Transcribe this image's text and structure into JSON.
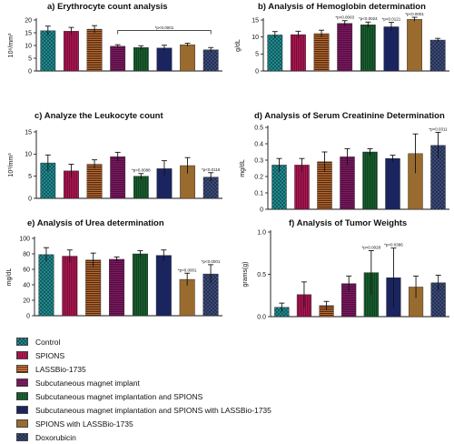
{
  "legend": {
    "items": [
      {
        "label": "Control",
        "color": "#1f8a8f",
        "pattern": "checker"
      },
      {
        "label": "SPIONS",
        "color": "#c2185b",
        "pattern": "vlines"
      },
      {
        "label": "LASSBio-1735",
        "color": "#e07b39",
        "pattern": "hlines"
      },
      {
        "label": "Subcutaneous magnet implant",
        "color": "#8e1b6e",
        "pattern": "hlines-dark"
      },
      {
        "label": "Subcutaneous magnet implantation and SPIONS",
        "color": "#1b6b35",
        "pattern": "vlines"
      },
      {
        "label": "Subcutaneous magnet implantation and SPIONS with LASSBio-1735",
        "color": "#1a2560",
        "pattern": "solid"
      },
      {
        "label": "SPIONS with LASSBio-1735",
        "color": "#9a6b2e",
        "pattern": "solid"
      },
      {
        "label": "Doxorubicin",
        "color": "#3b4a7a",
        "pattern": "checker"
      }
    ]
  },
  "chart_data": [
    {
      "type": "bar",
      "title": "a) Erythrocyte count analysis",
      "ylabel": "10⁶/mm³",
      "ylim": [
        0,
        20
      ],
      "yticks": [
        0,
        5,
        10,
        15,
        20
      ],
      "values": [
        15.8,
        15.6,
        16.4,
        9.7,
        9.2,
        9.0,
        10.3,
        8.3
      ],
      "errors": [
        1.8,
        1.5,
        1.4,
        0.6,
        0.7,
        1.1,
        0.6,
        0.9
      ],
      "annotations": [
        {
          "text": "*p<0.0001",
          "from": 3,
          "to": 7
        }
      ]
    },
    {
      "type": "bar",
      "title": "b) Analysis of Hemoglobin determination",
      "ylabel": "g/dL",
      "ylim": [
        0,
        15
      ],
      "yticks": [
        0,
        5,
        10,
        15
      ],
      "values": [
        10.6,
        10.7,
        11.0,
        14.0,
        13.6,
        13.0,
        15.2,
        9.1
      ],
      "errors": [
        1.0,
        1.0,
        1.0,
        0.8,
        0.8,
        1.3,
        0.6,
        0.5
      ],
      "annotations": [
        {
          "text": "*p<0.0003",
          "bar": 3
        },
        {
          "text": "*p<0.0024",
          "bar": 4
        },
        {
          "text": "*p<0.0121",
          "bar": 5
        },
        {
          "text": "*p<0.0001",
          "bar": 6
        }
      ]
    },
    {
      "type": "bar",
      "title": "c) Analyze the Leukocyte count",
      "ylabel": "10³/mm³",
      "ylim": [
        0,
        15
      ],
      "yticks": [
        0,
        5,
        10,
        15
      ],
      "values": [
        8.0,
        6.2,
        7.7,
        9.4,
        5.0,
        6.7,
        7.4,
        4.8
      ],
      "errors": [
        1.8,
        1.5,
        1.0,
        1.0,
        0.6,
        1.8,
        1.8,
        1.0
      ],
      "annotations": [
        {
          "text": "*p<0.0088",
          "bar": 4
        },
        {
          "text": "*p<0.0116",
          "bar": 7
        }
      ]
    },
    {
      "type": "bar",
      "title": "d) Analysis of Serum Creatinine Determination",
      "ylabel": "mg/dL",
      "ylim": [
        0,
        0.5
      ],
      "yticks": [
        0,
        0.1,
        0.2,
        0.3,
        0.4,
        0.5
      ],
      "values": [
        0.27,
        0.27,
        0.29,
        0.32,
        0.35,
        0.31,
        0.34,
        0.39
      ],
      "errors": [
        0.04,
        0.04,
        0.06,
        0.05,
        0.02,
        0.02,
        0.12,
        0.08
      ],
      "annotations": [
        {
          "text": "*p<0.0311",
          "bar": 7
        }
      ]
    },
    {
      "type": "bar",
      "title": "e) Analysis of Urea determination",
      "ylabel": "mg/dL",
      "ylim": [
        0,
        100
      ],
      "yticks": [
        0,
        20,
        40,
        60,
        80,
        100
      ],
      "values": [
        79,
        77,
        72,
        73,
        80,
        78,
        47,
        54
      ],
      "errors": [
        9,
        8,
        9,
        3,
        4,
        7,
        8,
        12
      ],
      "annotations": [
        {
          "text": "*p<0.0001",
          "bar": 6
        },
        {
          "text": "*p<0.0001",
          "bar": 7
        }
      ]
    },
    {
      "type": "bar",
      "title": "f) Analysis of Tumor Weights",
      "ylabel": "grams(g)",
      "ylim": [
        0,
        1.0
      ],
      "yticks": [
        0,
        0.5,
        1.0
      ],
      "ytickLabels": [
        "0.0",
        "0.5",
        "1.0"
      ],
      "values": [
        0.11,
        0.26,
        0.13,
        0.39,
        0.52,
        0.46,
        0.35,
        0.4
      ],
      "errors": [
        0.05,
        0.15,
        0.05,
        0.09,
        0.26,
        0.35,
        0.13,
        0.09
      ],
      "annotations": [
        {
          "text": "*p<0.0028",
          "bar": 4
        },
        {
          "text": "*p<0.0386",
          "bar": 5
        }
      ]
    }
  ]
}
